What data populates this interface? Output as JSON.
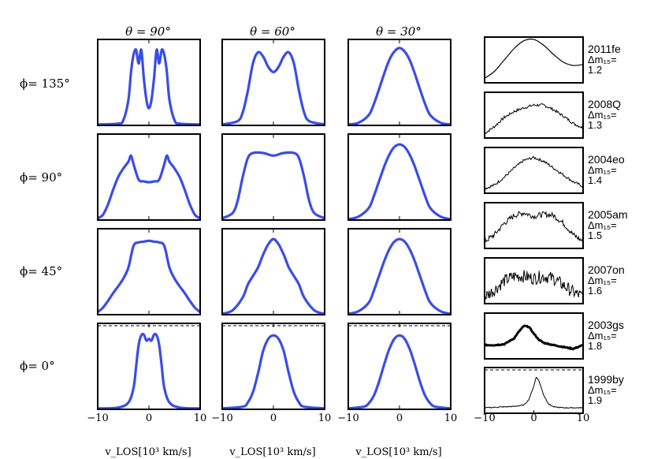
{
  "chart_data": {
    "type": "line",
    "title": "",
    "column_titles": [
      "θ = 90°",
      "θ = 60°",
      "θ = 30°"
    ],
    "row_labels": [
      "ϕ= 135°",
      "ϕ= 90°",
      "ϕ= 45°",
      "ϕ= 0°"
    ],
    "xlim": [
      -10,
      10
    ],
    "xticks": [
      -10,
      0,
      10
    ],
    "xtick_labels": [
      "−10",
      "0",
      "10"
    ],
    "xlabel": "v_LOS[10³ km/s]",
    "model_color": "#3a4de6",
    "observed_color": "#000000",
    "model_panels": [
      [
        {
          "theta": 90,
          "phi": 135,
          "x": [
            -10,
            -6,
            -5,
            -4,
            -3.5,
            -3,
            -2.5,
            -2,
            -1.5,
            -1,
            -0.5,
            0,
            0.5,
            1,
            1.5,
            2,
            2.5,
            3,
            3.5,
            4,
            5,
            6,
            10
          ],
          "y": [
            0.01,
            0.02,
            0.06,
            0.3,
            0.62,
            0.82,
            0.88,
            0.72,
            0.88,
            0.55,
            0.3,
            0.2,
            0.3,
            0.55,
            0.88,
            0.72,
            0.88,
            0.82,
            0.62,
            0.3,
            0.06,
            0.02,
            0.01
          ]
        },
        {
          "theta": 60,
          "phi": 135,
          "x": [
            -10,
            -7,
            -6,
            -5,
            -4,
            -3,
            -2,
            -1,
            0,
            1,
            2,
            3,
            4,
            5,
            6,
            7,
            10
          ],
          "y": [
            0.01,
            0.05,
            0.15,
            0.4,
            0.72,
            0.85,
            0.8,
            0.68,
            0.62,
            0.68,
            0.8,
            0.85,
            0.72,
            0.4,
            0.15,
            0.05,
            0.01
          ]
        },
        {
          "theta": 30,
          "phi": 135,
          "x": [
            -10,
            -8,
            -6,
            -5,
            -4,
            -3,
            -2,
            -1,
            0,
            1,
            2,
            3,
            4,
            5,
            6,
            8,
            10
          ],
          "y": [
            0.01,
            0.03,
            0.12,
            0.25,
            0.42,
            0.6,
            0.76,
            0.86,
            0.9,
            0.86,
            0.76,
            0.6,
            0.42,
            0.25,
            0.12,
            0.03,
            0.01
          ]
        }
      ],
      [
        {
          "theta": 90,
          "phi": 90,
          "x": [
            -10,
            -9,
            -8,
            -7,
            -6,
            -5,
            -4,
            -3.5,
            -3,
            -2,
            -1,
            0,
            1,
            2,
            3,
            3.5,
            4,
            5,
            6,
            7,
            8,
            9,
            10
          ],
          "y": [
            0.02,
            0.06,
            0.18,
            0.35,
            0.5,
            0.6,
            0.68,
            0.75,
            0.65,
            0.47,
            0.45,
            0.44,
            0.45,
            0.47,
            0.65,
            0.75,
            0.68,
            0.6,
            0.5,
            0.35,
            0.18,
            0.06,
            0.02
          ]
        },
        {
          "theta": 60,
          "phi": 90,
          "x": [
            -10,
            -8,
            -7,
            -6,
            -5,
            -4,
            -2,
            0,
            2,
            4,
            5,
            6,
            7,
            8,
            10
          ],
          "y": [
            0.02,
            0.08,
            0.22,
            0.5,
            0.72,
            0.78,
            0.78,
            0.75,
            0.78,
            0.78,
            0.72,
            0.5,
            0.22,
            0.08,
            0.02
          ]
        },
        {
          "theta": 30,
          "phi": 90,
          "x": [
            -10,
            -8,
            -6,
            -5,
            -4,
            -3,
            -2,
            -1,
            0,
            1,
            2,
            3,
            4,
            5,
            6,
            8,
            10
          ],
          "y": [
            0.01,
            0.04,
            0.14,
            0.28,
            0.45,
            0.62,
            0.76,
            0.85,
            0.88,
            0.85,
            0.76,
            0.62,
            0.45,
            0.28,
            0.14,
            0.04,
            0.01
          ]
        }
      ],
      [
        {
          "theta": 90,
          "phi": 45,
          "x": [
            -10,
            -9,
            -8,
            -7,
            -6,
            -5,
            -4,
            -3,
            -2,
            -1,
            0,
            1,
            2,
            3,
            4,
            5,
            6,
            7,
            8,
            9,
            10
          ],
          "y": [
            0.03,
            0.08,
            0.16,
            0.25,
            0.33,
            0.42,
            0.55,
            0.8,
            0.84,
            0.85,
            0.86,
            0.85,
            0.84,
            0.8,
            0.55,
            0.42,
            0.33,
            0.25,
            0.16,
            0.08,
            0.03
          ]
        },
        {
          "theta": 60,
          "phi": 45,
          "x": [
            -10,
            -8,
            -6,
            -5,
            -4,
            -3,
            -2,
            -1,
            0,
            1,
            2,
            3,
            4,
            5,
            6,
            8,
            10
          ],
          "y": [
            0.01,
            0.05,
            0.2,
            0.35,
            0.45,
            0.55,
            0.7,
            0.82,
            0.88,
            0.82,
            0.7,
            0.55,
            0.45,
            0.35,
            0.2,
            0.05,
            0.01
          ]
        },
        {
          "theta": 30,
          "phi": 45,
          "x": [
            -10,
            -8,
            -6,
            -5,
            -4,
            -3,
            -2,
            -1,
            0,
            1,
            2,
            3,
            4,
            5,
            6,
            8,
            10
          ],
          "y": [
            0.01,
            0.04,
            0.14,
            0.28,
            0.45,
            0.62,
            0.76,
            0.85,
            0.88,
            0.85,
            0.76,
            0.62,
            0.45,
            0.28,
            0.14,
            0.04,
            0.01
          ]
        }
      ],
      [
        {
          "theta": 90,
          "phi": 0,
          "x": [
            -10,
            -6,
            -4,
            -3,
            -2.5,
            -2,
            -1.5,
            -1,
            -0.5,
            0,
            0.5,
            1,
            1.5,
            2,
            2.5,
            3,
            4,
            6,
            10
          ],
          "y": [
            0.01,
            0.02,
            0.08,
            0.25,
            0.5,
            0.75,
            0.86,
            0.87,
            0.8,
            0.82,
            0.8,
            0.87,
            0.86,
            0.75,
            0.5,
            0.25,
            0.08,
            0.02,
            0.01
          ]
        },
        {
          "theta": 60,
          "phi": 0,
          "x": [
            -10,
            -6,
            -5,
            -4,
            -3,
            -2,
            -1,
            0,
            1,
            2,
            3,
            4,
            5,
            6,
            10
          ],
          "y": [
            0.01,
            0.03,
            0.08,
            0.2,
            0.42,
            0.68,
            0.82,
            0.86,
            0.82,
            0.68,
            0.42,
            0.2,
            0.08,
            0.03,
            0.01
          ]
        },
        {
          "theta": 30,
          "phi": 0,
          "x": [
            -10,
            -7,
            -6,
            -5,
            -4,
            -3,
            -2,
            -1,
            0,
            1,
            2,
            3,
            4,
            5,
            6,
            7,
            10
          ],
          "y": [
            0.01,
            0.03,
            0.07,
            0.16,
            0.32,
            0.52,
            0.7,
            0.82,
            0.86,
            0.82,
            0.7,
            0.52,
            0.32,
            0.16,
            0.07,
            0.03,
            0.01
          ]
        }
      ]
    ],
    "observed_panels": [
      {
        "name": "2011fe",
        "dm_label": "Δm₁₅=",
        "dm_value": "1.2",
        "noise": 0,
        "x": [
          -10,
          -8,
          -6,
          -4,
          -2,
          0,
          2,
          4,
          6,
          8,
          10
        ],
        "y": [
          0.1,
          0.25,
          0.5,
          0.75,
          0.92,
          0.95,
          0.82,
          0.62,
          0.45,
          0.38,
          0.4
        ]
      },
      {
        "name": "2008Q",
        "dm_label": "Δm₁₅=",
        "dm_value": "1.3",
        "noise": 0.03,
        "x": [
          -10,
          -8,
          -6,
          -4,
          -2,
          0,
          2,
          4,
          6,
          8,
          10
        ],
        "y": [
          0.1,
          0.25,
          0.45,
          0.58,
          0.66,
          0.72,
          0.72,
          0.62,
          0.48,
          0.32,
          0.22
        ]
      },
      {
        "name": "2004eo",
        "dm_label": "Δm₁₅=",
        "dm_value": "1.4",
        "noise": 0.03,
        "x": [
          -10,
          -8,
          -6,
          -4,
          -2,
          0,
          2,
          4,
          6,
          8,
          10
        ],
        "y": [
          0.1,
          0.18,
          0.35,
          0.55,
          0.72,
          0.78,
          0.7,
          0.55,
          0.4,
          0.25,
          0.15
        ]
      },
      {
        "name": "2005am",
        "dm_label": "Δm₁₅=",
        "dm_value": "1.5",
        "noise": 0.06,
        "x": [
          -10,
          -8,
          -6,
          -4,
          -2,
          0,
          2,
          4,
          6,
          8,
          10
        ],
        "y": [
          0.15,
          0.3,
          0.55,
          0.72,
          0.78,
          0.7,
          0.75,
          0.72,
          0.55,
          0.3,
          0.15
        ]
      },
      {
        "name": "2007on",
        "dm_label": "Δm₁₅=",
        "dm_value": "1.6",
        "noise": 0.14,
        "x": [
          -10,
          -8,
          -6,
          -4,
          -2,
          0,
          2,
          4,
          6,
          8,
          10
        ],
        "y": [
          0.15,
          0.3,
          0.5,
          0.6,
          0.6,
          0.55,
          0.6,
          0.55,
          0.4,
          0.25,
          0.15
        ]
      },
      {
        "name": "2003gs",
        "dm_label": "Δm₁₅=",
        "dm_value": "1.8",
        "noise": 0.01,
        "x": [
          -10,
          -8,
          -6,
          -4,
          -3,
          -2,
          -1,
          0,
          1,
          2,
          4,
          6,
          8,
          10
        ],
        "y": [
          0.3,
          0.3,
          0.32,
          0.45,
          0.6,
          0.72,
          0.7,
          0.55,
          0.42,
          0.35,
          0.3,
          0.26,
          0.22,
          0.3
        ]
      },
      {
        "name": "1999by",
        "dm_label": "Δm₁₅=",
        "dm_value": "1.9",
        "noise": 0.01,
        "x": [
          -10,
          -6,
          -4,
          -2,
          -1,
          0,
          0.5,
          1,
          2,
          3,
          4,
          6,
          10
        ],
        "y": [
          0.12,
          0.14,
          0.15,
          0.18,
          0.3,
          0.6,
          0.8,
          0.72,
          0.4,
          0.2,
          0.14,
          0.12,
          0.12
        ]
      }
    ]
  }
}
